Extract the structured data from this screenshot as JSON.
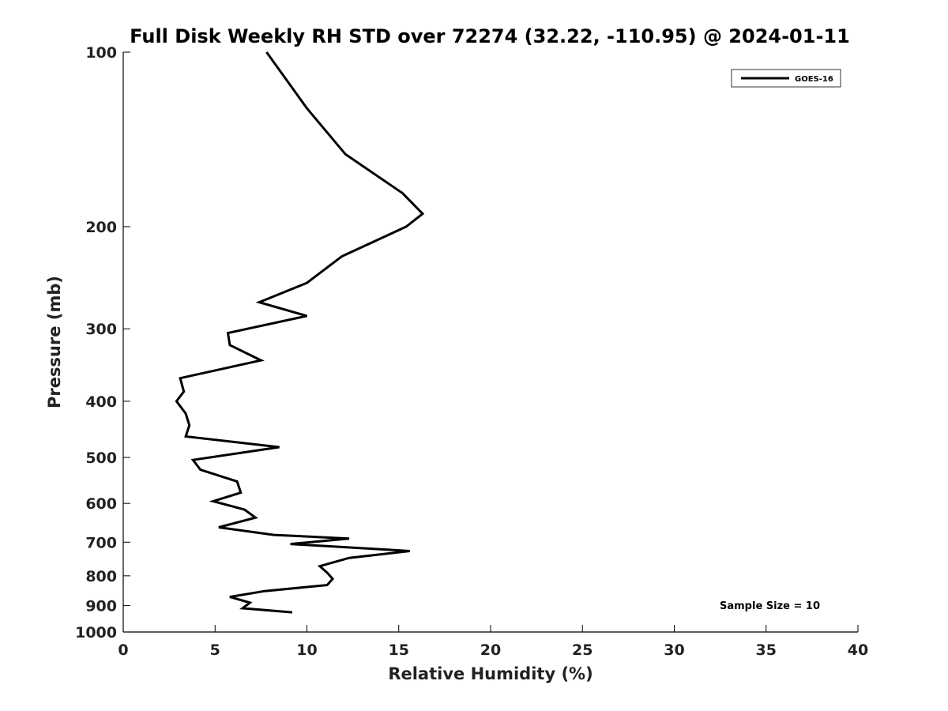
{
  "chart_data": {
    "type": "line",
    "title": "Full Disk Weekly RH STD over 72274 (32.22, -110.95) @ 2024-01-11",
    "xlabel": "Relative Humidity (%)",
    "ylabel": "Pressure (mb)",
    "xlim": [
      0,
      40
    ],
    "ylim": [
      100,
      1000
    ],
    "y_scale": "log",
    "y_inverted": true,
    "x_ticks": [
      0,
      5,
      10,
      15,
      20,
      25,
      30,
      35,
      40
    ],
    "y_ticks": [
      100,
      200,
      300,
      400,
      500,
      600,
      700,
      800,
      900,
      1000
    ],
    "grid": false,
    "legend_position": "top-right",
    "annotation": "Sample Size = 10",
    "series": [
      {
        "name": "GOES-16",
        "color": "#000000",
        "x": [
          7.8,
          10.0,
          12.1,
          15.2,
          16.3,
          15.4,
          11.9,
          10.0,
          7.4,
          10.0,
          5.7,
          5.8,
          7.5,
          3.1,
          3.3,
          2.9,
          3.4,
          3.6,
          3.4,
          8.5,
          3.8,
          4.2,
          6.2,
          6.4,
          4.9,
          6.6,
          7.2,
          5.2,
          8.2,
          12.3,
          9.1,
          15.6,
          12.3,
          10.7,
          11.1,
          11.4,
          11.1,
          7.7,
          5.8,
          6.9,
          6.5,
          9.2
        ],
        "y": [
          100,
          125,
          150,
          175,
          190,
          200,
          225,
          250,
          270,
          285,
          305,
          320,
          340,
          365,
          385,
          400,
          420,
          440,
          460,
          480,
          505,
          525,
          550,
          575,
          595,
          615,
          635,
          660,
          680,
          690,
          705,
          725,
          745,
          770,
          790,
          810,
          830,
          850,
          870,
          890,
          910,
          925
        ]
      }
    ]
  }
}
